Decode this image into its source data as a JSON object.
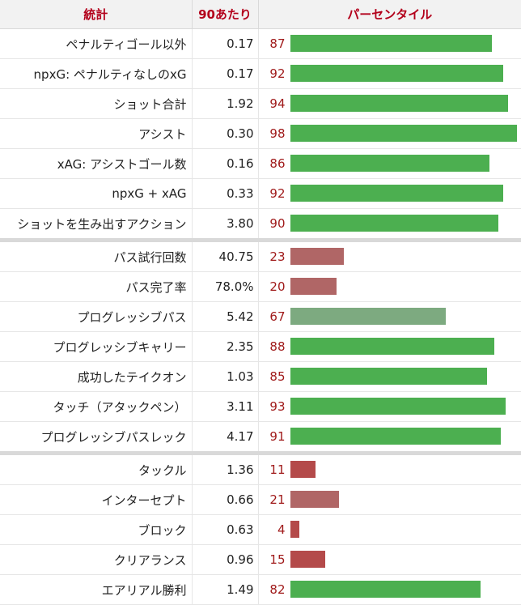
{
  "header": {
    "stat": "統計",
    "per90": "90あたり",
    "percentile": "パーセンタイル"
  },
  "colors": {
    "high": "#4caf50",
    "mid": "#7daa80",
    "low": "#b06666",
    "very_low": "#b44a4a",
    "header_text": "#b3001b",
    "percentile_text": "#a01a1a"
  },
  "rows": [
    {
      "stat": "ペナルティゴール以外",
      "per90": "0.17",
      "pct": "87",
      "group": 1
    },
    {
      "stat": "npxG: ペナルティなしのxG",
      "per90": "0.17",
      "pct": "92",
      "group": 1
    },
    {
      "stat": "ショット合計",
      "per90": "1.92",
      "pct": "94",
      "group": 1
    },
    {
      "stat": "アシスト",
      "per90": "0.30",
      "pct": "98",
      "group": 1
    },
    {
      "stat": "xAG: アシストゴール数",
      "per90": "0.16",
      "pct": "86",
      "group": 1
    },
    {
      "stat": "npxG + xAG",
      "per90": "0.33",
      "pct": "92",
      "group": 1
    },
    {
      "stat": "ショットを生み出すアクション",
      "per90": "3.80",
      "pct": "90",
      "group": 1
    },
    {
      "stat": "パス試行回数",
      "per90": "40.75",
      "pct": "23",
      "group": 2
    },
    {
      "stat": "パス完了率",
      "per90": "78.0%",
      "pct": "20",
      "group": 2
    },
    {
      "stat": "プログレッシブパス",
      "per90": "5.42",
      "pct": "67",
      "group": 2
    },
    {
      "stat": "プログレッシブキャリー",
      "per90": "2.35",
      "pct": "88",
      "group": 2
    },
    {
      "stat": "成功したテイクオン",
      "per90": "1.03",
      "pct": "85",
      "group": 2
    },
    {
      "stat": "タッチ（アタックペン）",
      "per90": "3.11",
      "pct": "93",
      "group": 2
    },
    {
      "stat": "プログレッシブパスレック",
      "per90": "4.17",
      "pct": "91",
      "group": 2
    },
    {
      "stat": "タックル",
      "per90": "1.36",
      "pct": "11",
      "group": 3
    },
    {
      "stat": "インターセプト",
      "per90": "0.66",
      "pct": "21",
      "group": 3
    },
    {
      "stat": "ブロック",
      "per90": "0.63",
      "pct": "4",
      "group": 3
    },
    {
      "stat": "クリアランス",
      "per90": "0.96",
      "pct": "15",
      "group": 3
    },
    {
      "stat": "エアリアル勝利",
      "per90": "1.49",
      "pct": "82",
      "group": 3
    }
  ]
}
